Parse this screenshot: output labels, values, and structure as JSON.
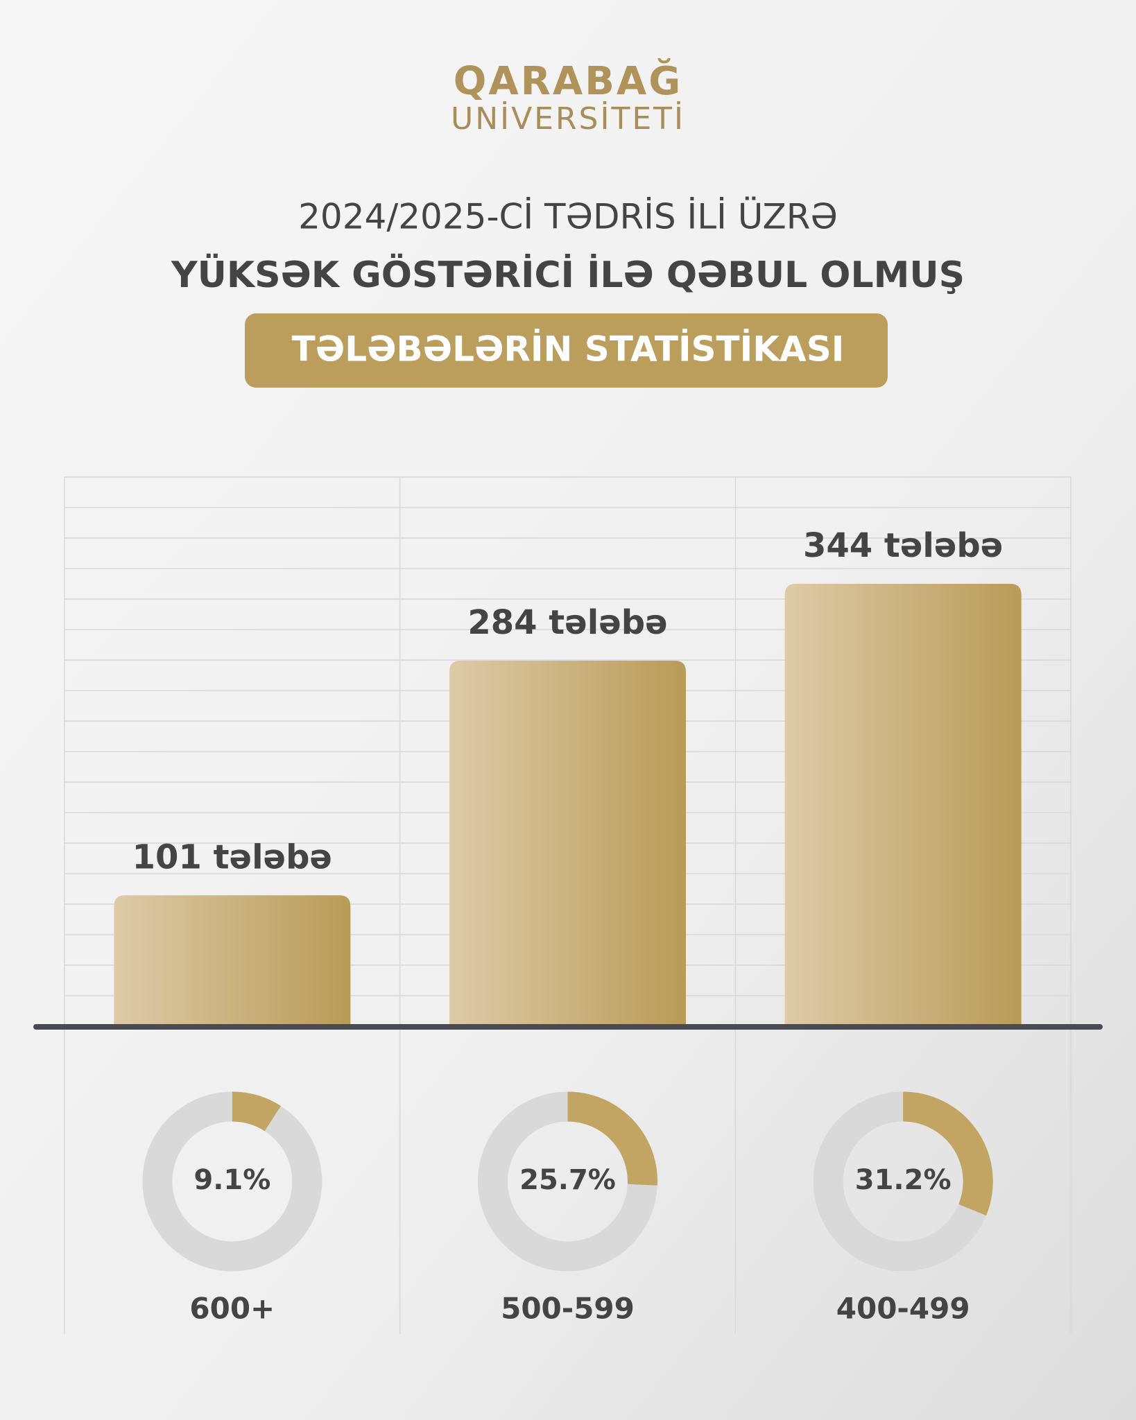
{
  "header": {
    "logo_line1": "QARABAĞ",
    "logo_line2": "UNİVERSİTETİ",
    "title_line1": "2024/2025-Cİ TƏDRİS İLİ ÜZRƏ",
    "title_line2": "YÜKSƏK GÖSTƏRİCİ İLƏ QƏBUL OLMUŞ",
    "title_badge": "TƏLƏBƏLƏRİN STATİSTİKASI"
  },
  "chart_data": [
    {
      "type": "bar",
      "categories": [
        "600+",
        "500-599",
        "400-499"
      ],
      "values": [
        101,
        284,
        344
      ],
      "value_labels": [
        "101 tələbə",
        "284 tələbə",
        "344 tələbə"
      ],
      "color": "#b89a5a"
    },
    {
      "type": "donut",
      "values": [
        9.1,
        25.7,
        31.2
      ],
      "value_labels": [
        "9.1%",
        "25.7%",
        "31.2%"
      ],
      "color": "#c2a463",
      "track_color": "#d9d9d9"
    }
  ]
}
